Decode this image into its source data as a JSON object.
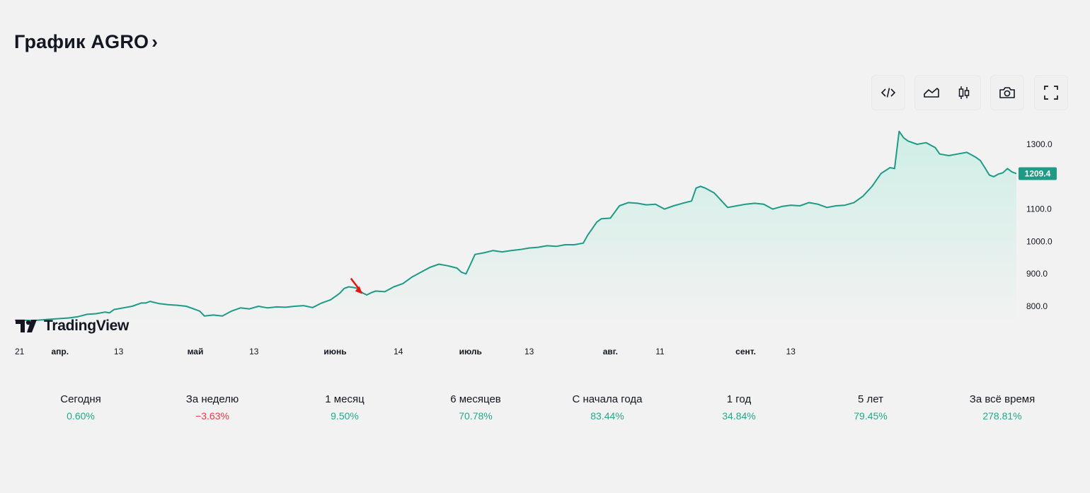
{
  "header": {
    "title": "График AGRO",
    "chevron": "›"
  },
  "toolbar": {
    "buttons": [
      {
        "name": "embed-code",
        "icon": "code-icon"
      },
      {
        "name": "area-chart",
        "icon": "area-chart-icon"
      },
      {
        "name": "candles-chart",
        "icon": "candlestick-icon"
      },
      {
        "name": "screenshot",
        "icon": "camera-icon"
      },
      {
        "name": "fullscreen",
        "icon": "fullscreen-icon"
      }
    ]
  },
  "branding": {
    "logo_text": "TradingView"
  },
  "colors": {
    "line": "#1f9a86",
    "fill_top": "#cfeee6",
    "fill_bottom": "#f2f2f2",
    "price_badge": "#1f9a86",
    "positive": "#22a88a",
    "negative": "#f23645",
    "marker": "#e8150e"
  },
  "chart_data": {
    "type": "area",
    "ylim": [
      740,
      1360
    ],
    "y_ticks": [
      800,
      900,
      1000,
      1100,
      1200,
      1300
    ],
    "y_tick_labels": [
      "800.0",
      "900.0",
      "1000.0",
      "1100.0",
      "1200.0",
      "1300.0"
    ],
    "last_price_label": "1209.4",
    "last_price": 1209.4,
    "grid": false,
    "x_tick_labels": [
      "21",
      "апр.",
      "13",
      "май",
      "13",
      "июнь",
      "14",
      "июль",
      "13",
      "авг.",
      "11",
      "сент.",
      "13"
    ],
    "x_tick_days": [
      0,
      10,
      23,
      40,
      53,
      71,
      85,
      101,
      114,
      132,
      143,
      162,
      172
    ],
    "series": [
      {
        "points": [
          [
            0,
            757
          ],
          [
            2,
            757
          ],
          [
            4,
            756
          ],
          [
            6,
            758
          ],
          [
            8,
            760
          ],
          [
            10,
            762
          ],
          [
            12,
            764
          ],
          [
            14,
            768
          ],
          [
            16,
            775
          ],
          [
            18,
            777
          ],
          [
            20,
            782
          ],
          [
            21,
            780
          ],
          [
            22,
            790
          ],
          [
            24,
            795
          ],
          [
            26,
            800
          ],
          [
            28,
            810
          ],
          [
            29,
            810
          ],
          [
            30,
            815
          ],
          [
            32,
            808
          ],
          [
            34,
            805
          ],
          [
            36,
            803
          ],
          [
            38,
            800
          ],
          [
            40,
            790
          ],
          [
            41,
            785
          ],
          [
            42,
            770
          ],
          [
            44,
            773
          ],
          [
            46,
            770
          ],
          [
            48,
            785
          ],
          [
            50,
            795
          ],
          [
            52,
            792
          ],
          [
            54,
            800
          ],
          [
            56,
            795
          ],
          [
            58,
            798
          ],
          [
            60,
            797
          ],
          [
            62,
            800
          ],
          [
            64,
            802
          ],
          [
            66,
            796
          ],
          [
            68,
            810
          ],
          [
            70,
            820
          ],
          [
            72,
            840
          ],
          [
            73,
            855
          ],
          [
            74,
            860
          ],
          [
            75,
            858
          ],
          [
            76,
            855
          ],
          [
            77,
            842
          ],
          [
            78,
            835
          ],
          [
            79,
            842
          ],
          [
            80,
            847
          ],
          [
            82,
            845
          ],
          [
            84,
            860
          ],
          [
            86,
            870
          ],
          [
            88,
            890
          ],
          [
            90,
            905
          ],
          [
            92,
            920
          ],
          [
            94,
            930
          ],
          [
            96,
            925
          ],
          [
            98,
            918
          ],
          [
            99,
            905
          ],
          [
            100,
            900
          ],
          [
            101,
            930
          ],
          [
            102,
            960
          ],
          [
            104,
            965
          ],
          [
            106,
            972
          ],
          [
            108,
            968
          ],
          [
            110,
            972
          ],
          [
            112,
            975
          ],
          [
            114,
            980
          ],
          [
            116,
            982
          ],
          [
            118,
            987
          ],
          [
            120,
            985
          ],
          [
            122,
            990
          ],
          [
            124,
            990
          ],
          [
            126,
            995
          ],
          [
            127,
            1020
          ],
          [
            128,
            1040
          ],
          [
            129,
            1060
          ],
          [
            130,
            1070
          ],
          [
            132,
            1072
          ],
          [
            134,
            1110
          ],
          [
            136,
            1120
          ],
          [
            138,
            1118
          ],
          [
            140,
            1113
          ],
          [
            142,
            1115
          ],
          [
            144,
            1100
          ],
          [
            146,
            1110
          ],
          [
            148,
            1118
          ],
          [
            150,
            1125
          ],
          [
            151,
            1165
          ],
          [
            152,
            1170
          ],
          [
            153,
            1165
          ],
          [
            155,
            1150
          ],
          [
            157,
            1120
          ],
          [
            158,
            1105
          ],
          [
            160,
            1110
          ],
          [
            162,
            1115
          ],
          [
            164,
            1118
          ],
          [
            166,
            1115
          ],
          [
            168,
            1100
          ],
          [
            170,
            1108
          ],
          [
            172,
            1112
          ],
          [
            174,
            1110
          ],
          [
            176,
            1120
          ],
          [
            178,
            1115
          ],
          [
            180,
            1105
          ],
          [
            182,
            1110
          ],
          [
            184,
            1112
          ],
          [
            186,
            1120
          ],
          [
            188,
            1140
          ],
          [
            190,
            1170
          ],
          [
            192,
            1210
          ],
          [
            194,
            1228
          ],
          [
            195,
            1225
          ],
          [
            196,
            1340
          ],
          [
            197,
            1320
          ],
          [
            198,
            1310
          ],
          [
            200,
            1300
          ],
          [
            202,
            1305
          ],
          [
            204,
            1290
          ],
          [
            205,
            1270
          ],
          [
            207,
            1265
          ],
          [
            209,
            1270
          ],
          [
            211,
            1275
          ],
          [
            213,
            1260
          ],
          [
            214,
            1250
          ],
          [
            215,
            1228
          ],
          [
            216,
            1205
          ],
          [
            217,
            1200
          ],
          [
            218,
            1208
          ],
          [
            219,
            1212
          ],
          [
            220,
            1225
          ],
          [
            221,
            1215
          ],
          [
            222,
            1209.4
          ]
        ]
      }
    ]
  },
  "stats": [
    {
      "label": "Сегодня",
      "value": "0.60%",
      "sign": "pos"
    },
    {
      "label": "За неделю",
      "value": "−3.63%",
      "sign": "neg"
    },
    {
      "label": "1 месяц",
      "value": "9.50%",
      "sign": "pos"
    },
    {
      "label": "6 месяцев",
      "value": "70.78%",
      "sign": "pos"
    },
    {
      "label": "С начала года",
      "value": "83.44%",
      "sign": "pos"
    },
    {
      "label": "1 год",
      "value": "34.84%",
      "sign": "pos"
    },
    {
      "label": "5 лет",
      "value": "79.45%",
      "sign": "pos"
    },
    {
      "label": "За всё время",
      "value": "278.81%",
      "sign": "pos"
    }
  ]
}
